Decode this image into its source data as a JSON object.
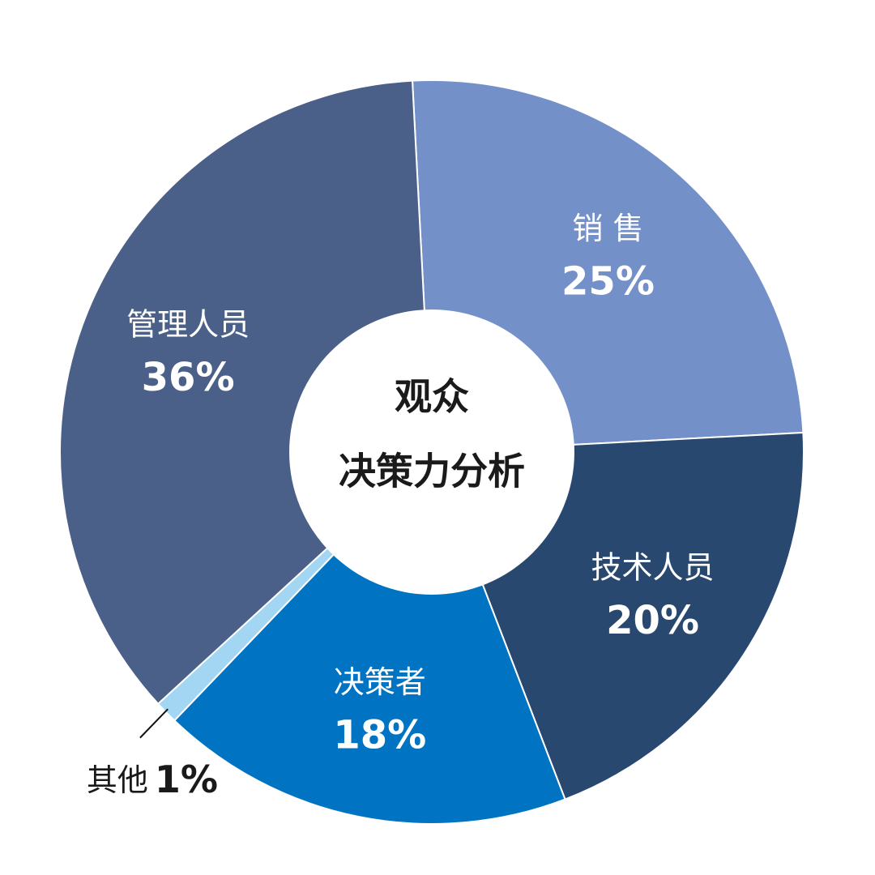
{
  "chart_data": {
    "type": "donut",
    "title": [
      "观众",
      "决策力分析"
    ],
    "categories": [
      "销 售",
      "技术人员",
      "决策者",
      "其他",
      "管理人员"
    ],
    "values": [
      25,
      20,
      18,
      1,
      36
    ],
    "value_labels": [
      "25%",
      "20%",
      "18%",
      "1%",
      "36%"
    ],
    "colors": [
      "#7490c8",
      "#28486f",
      "#0073c2",
      "#a2d6f3",
      "#4a6088"
    ]
  }
}
